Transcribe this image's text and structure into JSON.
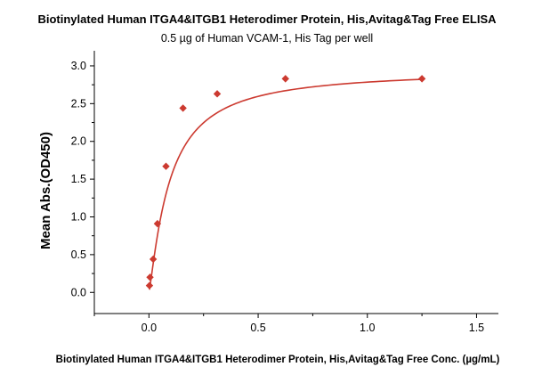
{
  "chart_data": {
    "type": "scatter",
    "title": "Biotinylated Human ITGA4&ITGB1 Heterodimer Protein, His,Avitag&Tag Free ELISA",
    "subtitle": "0.5 µg of Human VCAM-1, His Tag per well",
    "xlabel": "Biotinylated Human ITGA4&ITGB1 Heterodimer Protein, His,Avitag&Tag Free Conc. (µg/mL)",
    "ylabel": "Mean Abs.(OD450)",
    "xlim": [
      -0.25,
      1.6
    ],
    "ylim": [
      -0.28,
      3.2
    ],
    "xticks": [
      0.0,
      0.5,
      1.0,
      1.5
    ],
    "xtick_labels": [
      "0.0",
      "0.5",
      "1.0",
      "1.5"
    ],
    "yticks": [
      0.0,
      0.5,
      1.0,
      1.5,
      2.0,
      2.5,
      3.0
    ],
    "ytick_labels": [
      "0.0",
      "0.5",
      "1.0",
      "1.5",
      "2.0",
      "2.5",
      "3.0"
    ],
    "grid": false,
    "legend": "none",
    "series": [
      {
        "marker": "diamond",
        "color": "#cc3a30",
        "x": [
          0.0024,
          0.0049,
          0.0195,
          0.039,
          0.078,
          0.156,
          0.3125,
          0.625,
          1.25
        ],
        "y": [
          0.09,
          0.2,
          0.44,
          0.91,
          1.67,
          2.44,
          2.63,
          2.83,
          2.83
        ]
      }
    ],
    "fit": {
      "type": "sigmoid",
      "color": "#cc3a30",
      "top": 2.95,
      "ec50": 0.095,
      "hill": 1.2,
      "bottom": 0.0
    }
  }
}
